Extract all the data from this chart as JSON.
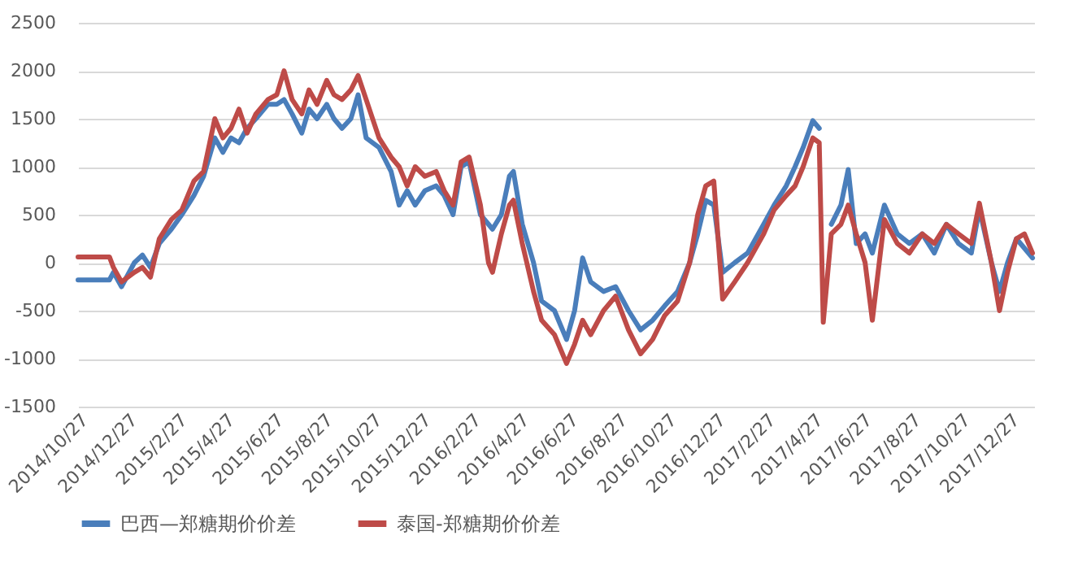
{
  "chart_data": {
    "type": "line",
    "x": [
      "2014-10-27",
      "2014-12-05",
      "2014-12-10",
      "2014-12-20",
      "2015-01-05",
      "2015-01-15",
      "2015-01-25",
      "2015-02-05",
      "2015-02-20",
      "2015-03-05",
      "2015-03-20",
      "2015-04-01",
      "2015-04-15",
      "2015-04-25",
      "2015-05-05",
      "2015-05-15",
      "2015-05-25",
      "2015-06-05",
      "2015-06-20",
      "2015-07-01",
      "2015-07-10",
      "2015-07-20",
      "2015-08-01",
      "2015-08-10",
      "2015-08-20",
      "2015-09-01",
      "2015-09-10",
      "2015-09-20",
      "2015-10-01",
      "2015-10-10",
      "2015-10-20",
      "2015-11-05",
      "2015-11-20",
      "2015-11-30",
      "2015-12-10",
      "2015-12-20",
      "2016-01-01",
      "2016-01-15",
      "2016-01-25",
      "2016-02-05",
      "2016-02-15",
      "2016-02-25",
      "2016-03-10",
      "2016-03-20",
      "2016-03-25",
      "2016-04-05",
      "2016-04-15",
      "2016-04-20",
      "2016-05-01",
      "2016-05-15",
      "2016-05-25",
      "2016-06-10",
      "2016-06-25",
      "2016-07-05",
      "2016-07-15",
      "2016-07-25",
      "2016-08-10",
      "2016-08-25",
      "2016-09-10",
      "2016-09-25",
      "2016-10-10",
      "2016-10-25",
      "2016-11-10",
      "2016-11-25",
      "2016-12-05",
      "2016-12-15",
      "2016-12-25",
      "2017-01-05",
      "2017-01-20",
      "2017-02-05",
      "2017-02-25",
      "2017-03-10",
      "2017-03-25",
      "2017-04-05",
      "2017-04-15",
      "2017-04-27",
      "2017-05-05",
      "2017-05-10",
      "2017-05-20",
      "2017-06-01",
      "2017-06-10",
      "2017-06-20",
      "2017-07-01",
      "2017-07-10",
      "2017-07-25",
      "2017-08-10",
      "2017-08-25",
      "2017-09-10",
      "2017-09-25",
      "2017-10-10",
      "2017-10-25",
      "2017-11-10",
      "2017-11-20",
      "2017-12-05",
      "2017-12-15",
      "2017-12-25",
      "2018-01-05",
      "2018-01-15",
      "2018-01-25"
    ],
    "series": [
      {
        "name": "巴西—郑糖期价价差",
        "color": "#4a7ebb",
        "values": [
          -180,
          -180,
          -100,
          -250,
          0,
          80,
          -50,
          200,
          350,
          500,
          700,
          900,
          1300,
          1150,
          1300,
          1250,
          1400,
          1500,
          1650,
          1650,
          1700,
          1550,
          1350,
          1600,
          1500,
          1650,
          1500,
          1400,
          1500,
          1750,
          1300,
          1200,
          950,
          600,
          750,
          600,
          750,
          800,
          700,
          500,
          1000,
          1050,
          500,
          400,
          350,
          500,
          900,
          950,
          400,
          0,
          -400,
          -500,
          -800,
          -500,
          50,
          -200,
          -300,
          -250,
          -500,
          -700,
          -600,
          -450,
          -300,
          0,
          300,
          650,
          600,
          -100,
          0,
          100,
          400,
          600,
          800,
          1000,
          1200,
          1480,
          1400,
          null,
          400,
          600,
          970,
          200,
          300,
          100,
          600,
          300,
          200,
          300,
          100,
          400,
          200,
          100,
          560,
          0,
          -300,
          0,
          250,
          150,
          50
        ]
      },
      {
        "name": "泰国-郑糖期价价差",
        "color": "#be4b48",
        "values": [
          60,
          60,
          -50,
          -200,
          -100,
          -50,
          -150,
          250,
          450,
          550,
          850,
          950,
          1500,
          1300,
          1400,
          1600,
          1350,
          1550,
          1700,
          1750,
          2000,
          1700,
          1550,
          1800,
          1650,
          1900,
          1750,
          1700,
          1800,
          1950,
          1700,
          1300,
          1100,
          1000,
          800,
          1000,
          900,
          950,
          750,
          600,
          1050,
          1100,
          600,
          0,
          -100,
          300,
          600,
          650,
          200,
          -300,
          -600,
          -750,
          -1050,
          -850,
          -600,
          -750,
          -500,
          -350,
          -700,
          -950,
          -800,
          -550,
          -400,
          0,
          500,
          800,
          850,
          -380,
          -200,
          0,
          300,
          550,
          700,
          800,
          1000,
          1300,
          1250,
          -620,
          300,
          400,
          600,
          300,
          0,
          -600,
          450,
          200,
          100,
          300,
          200,
          400,
          300,
          200,
          620,
          0,
          -500,
          -100,
          250,
          300,
          100
        ]
      }
    ],
    "xlim": [
      "2014-10-27",
      "2018-01-27"
    ],
    "xticks": [
      {
        "value": "2014-10-27",
        "label": "2014/10/27"
      },
      {
        "value": "2014-12-27",
        "label": "2014/12/27"
      },
      {
        "value": "2015-02-27",
        "label": "2015/2/27"
      },
      {
        "value": "2015-04-27",
        "label": "2015/4/27"
      },
      {
        "value": "2015-06-27",
        "label": "2015/6/27"
      },
      {
        "value": "2015-08-27",
        "label": "2015/8/27"
      },
      {
        "value": "2015-10-27",
        "label": "2015/10/27"
      },
      {
        "value": "2015-12-27",
        "label": "2015/12/27"
      },
      {
        "value": "2016-02-27",
        "label": "2016/2/27"
      },
      {
        "value": "2016-04-27",
        "label": "2016/4/27"
      },
      {
        "value": "2016-06-27",
        "label": "2016/6/27"
      },
      {
        "value": "2016-08-27",
        "label": "2016/8/27"
      },
      {
        "value": "2016-10-27",
        "label": "2016/10/27"
      },
      {
        "value": "2016-12-27",
        "label": "2016/12/27"
      },
      {
        "value": "2017-02-27",
        "label": "2017/2/27"
      },
      {
        "value": "2017-04-27",
        "label": "2017/4/27"
      },
      {
        "value": "2017-06-27",
        "label": "2017/6/27"
      },
      {
        "value": "2017-08-27",
        "label": "2017/8/27"
      },
      {
        "value": "2017-10-27",
        "label": "2017/10/27"
      },
      {
        "value": "2017-12-27",
        "label": "2017/12/27"
      }
    ],
    "ylim": [
      -1500,
      2500
    ],
    "yticks": [
      -1500,
      -1000,
      -500,
      0,
      500,
      1000,
      1500,
      2000,
      2500
    ],
    "grid": "y",
    "legend": "bottom",
    "line_style": "solid"
  }
}
